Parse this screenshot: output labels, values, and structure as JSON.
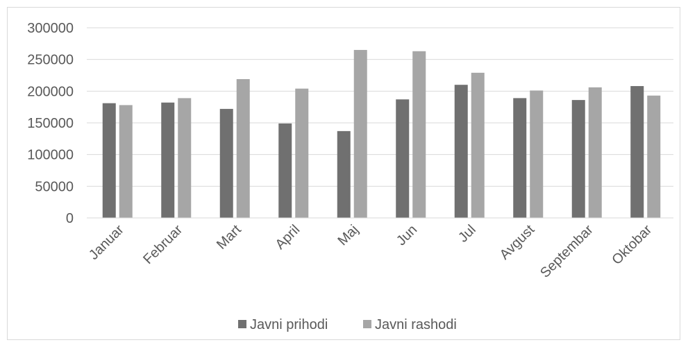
{
  "chart_data": {
    "type": "bar",
    "title": "",
    "xlabel": "",
    "ylabel": "",
    "categories": [
      "Januar",
      "Februar",
      "Mart",
      "April",
      "Maj",
      "Jun",
      "Jul",
      "Avgust",
      "Septembar",
      "Oktobar"
    ],
    "series": [
      {
        "name": "Javni prihodi",
        "color": "#707070",
        "values": [
          181000,
          182000,
          172000,
          149000,
          137000,
          187000,
          210000,
          189000,
          186000,
          208000
        ]
      },
      {
        "name": "Javni rashodi",
        "color": "#a6a6a6",
        "values": [
          178000,
          189000,
          219000,
          204000,
          265000,
          263000,
          229000,
          201000,
          206000,
          193000
        ]
      }
    ],
    "ylim": [
      0,
      300000
    ],
    "yticks": [
      "0",
      "50000",
      "100000",
      "150000",
      "200000",
      "250000",
      "300000"
    ],
    "ytick_values": [
      0,
      50000,
      100000,
      150000,
      200000,
      250000,
      300000
    ],
    "grid": true,
    "legend_position": "bottom"
  }
}
